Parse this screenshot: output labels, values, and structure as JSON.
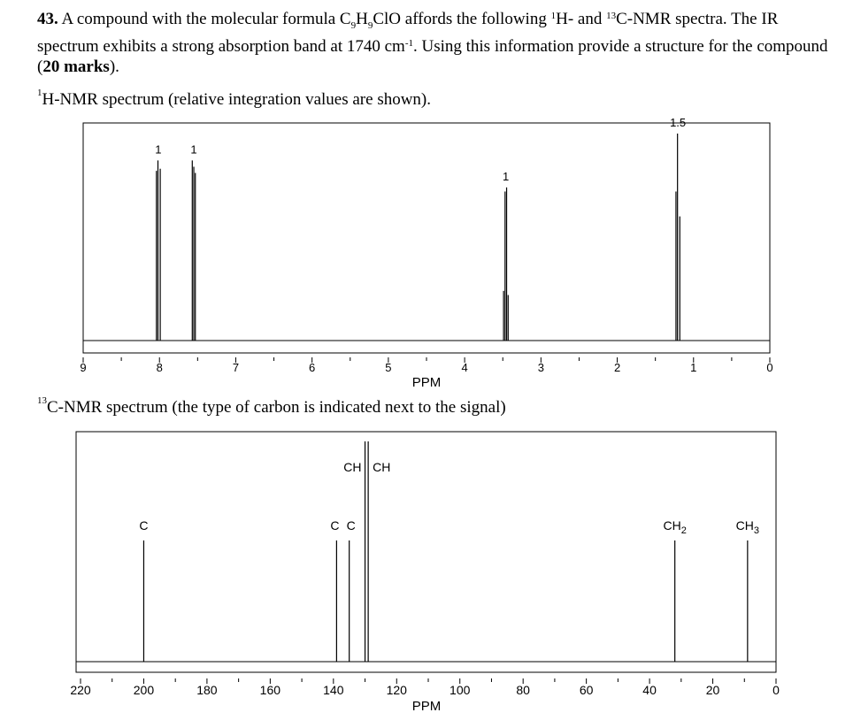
{
  "question": {
    "number": "43.",
    "text_a": "A compound with the molecular formula C",
    "formula_sub1": "9",
    "text_b": "H",
    "formula_sub2": "9",
    "text_c": "ClO affords the following ",
    "sup_1": "1",
    "text_d": "H- and ",
    "sup_13": "13",
    "text_e": "C-NMR spectra. The IR spectrum exhibits a strong absorption band at 1740 cm",
    "sup_neg1": "-1",
    "text_f": ". Using this information provide a structure for the compound (",
    "marks": "20 marks",
    "text_g": ")."
  },
  "h_nmr": {
    "heading_sup": "1",
    "heading": "H-NMR spectrum (relative integration values are shown).",
    "axis_label": "PPM"
  },
  "c_nmr": {
    "heading_sup": "13",
    "heading": "C-NMR spectrum (the type of carbon is indicated next to the signal)",
    "axis_label": "PPM"
  },
  "chart_data": [
    {
      "type": "line",
      "title": "1H-NMR spectrum",
      "xlabel": "PPM",
      "xlim": [
        9,
        0
      ],
      "x_ticks": [
        "9",
        "8",
        "7",
        "6",
        "5",
        "4",
        "3",
        "2",
        "1",
        "0"
      ],
      "peaks": [
        {
          "ppm": 8.0,
          "integration": "1",
          "lines": [
            8.04,
            8.02,
            7.99
          ],
          "heights": [
            0.82,
            0.87,
            0.83
          ]
        },
        {
          "ppm": 7.55,
          "integration": "1",
          "lines": [
            7.57,
            7.55,
            7.53
          ],
          "heights": [
            0.87,
            0.84,
            0.81
          ]
        },
        {
          "ppm": 3.45,
          "integration": "1",
          "lines": [
            3.49,
            3.47,
            3.45,
            3.43
          ],
          "heights": [
            0.24,
            0.72,
            0.74,
            0.22
          ]
        },
        {
          "ppm": 1.2,
          "integration": "1.5",
          "lines": [
            1.23,
            1.21,
            1.18
          ],
          "heights": [
            0.72,
            1.0,
            0.6
          ]
        }
      ]
    },
    {
      "type": "bar",
      "title": "13C-NMR spectrum",
      "xlabel": "PPM",
      "xlim": [
        220,
        0
      ],
      "x_ticks": [
        "220",
        "200",
        "180",
        "160",
        "140",
        "120",
        "100",
        "80",
        "60",
        "40",
        "20",
        "0"
      ],
      "signals": [
        {
          "ppm": 200,
          "label": "C",
          "height": 0.55
        },
        {
          "ppm": 139,
          "label": "C",
          "height": 0.55
        },
        {
          "ppm": 135,
          "label": "C",
          "height": 0.55
        },
        {
          "ppm": 130,
          "label": "CH",
          "height": 1.0
        },
        {
          "ppm": 129,
          "label": "CH",
          "height": 1.0
        },
        {
          "ppm": 32,
          "label": "CH2",
          "height": 0.55
        },
        {
          "ppm": 9,
          "label": "CH3",
          "height": 0.55
        }
      ]
    }
  ]
}
